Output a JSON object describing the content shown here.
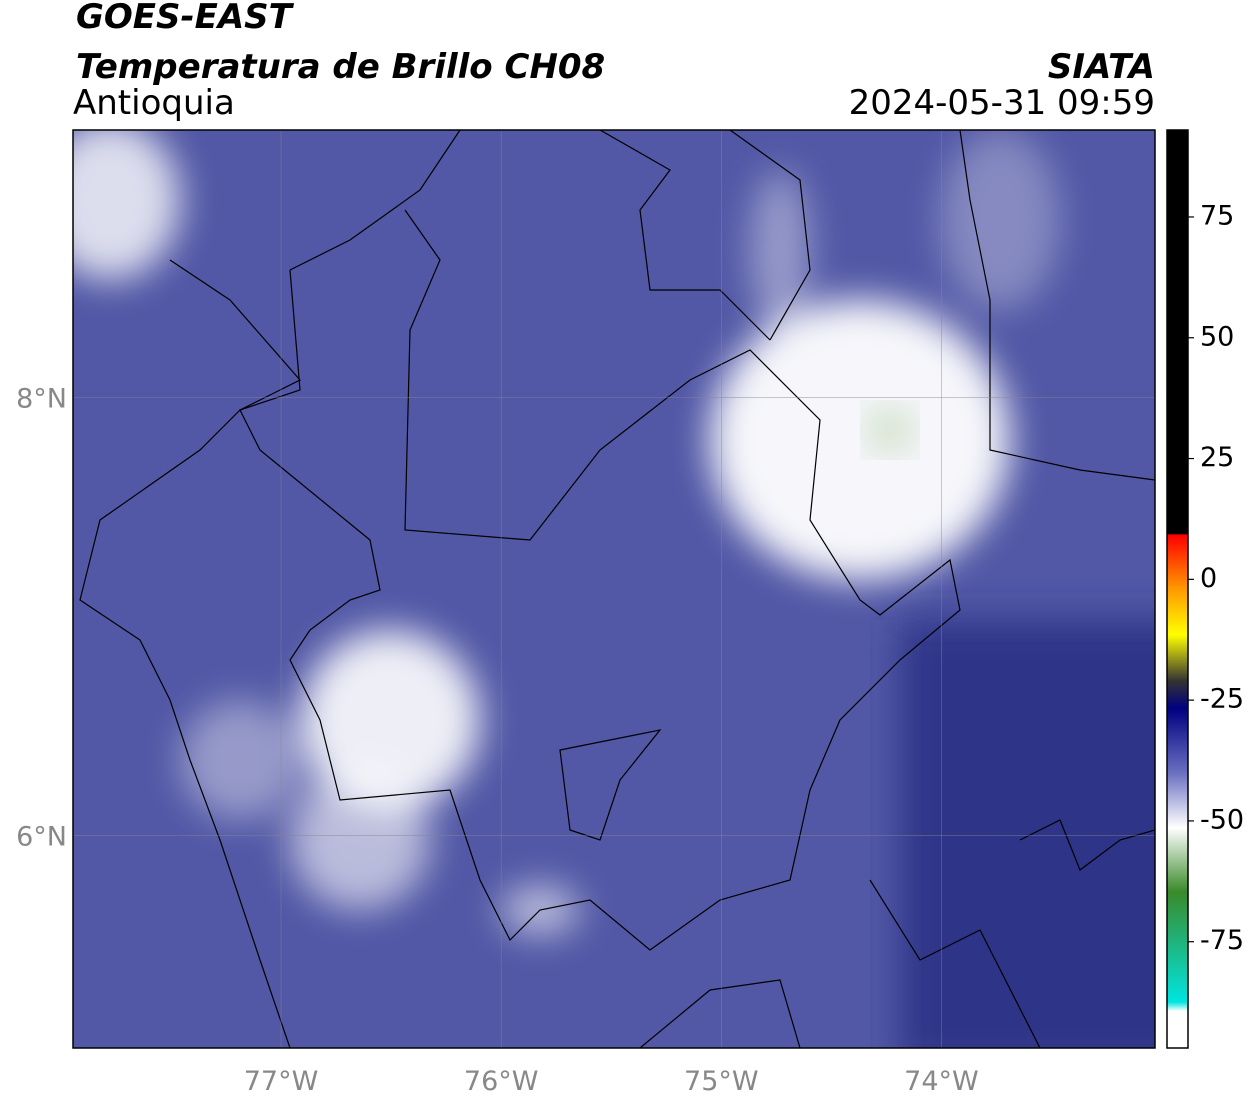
{
  "header": {
    "title": "GOES-EAST",
    "subtitle": "Temperatura de Brillo CH08",
    "region": "Antioquia",
    "source": "SIATA",
    "datetime": "2024-05-31 09:59"
  },
  "map": {
    "xlim": [
      -77.945,
      -73.03
    ],
    "ylim": [
      5.03,
      9.22
    ],
    "xticks": [
      {
        "value": -77,
        "label": "77°W"
      },
      {
        "value": -76,
        "label": "76°W"
      },
      {
        "value": -75,
        "label": "75°W"
      },
      {
        "value": -74,
        "label": "74°W"
      }
    ],
    "yticks": [
      {
        "value": 8,
        "label": "8°N"
      },
      {
        "value": 6,
        "label": "6°N"
      }
    ],
    "grid": true
  },
  "colorbar": {
    "lim": [
      -97,
      93
    ],
    "ticks": [
      75,
      50,
      25,
      0,
      -25,
      -50,
      -75
    ]
  }
}
